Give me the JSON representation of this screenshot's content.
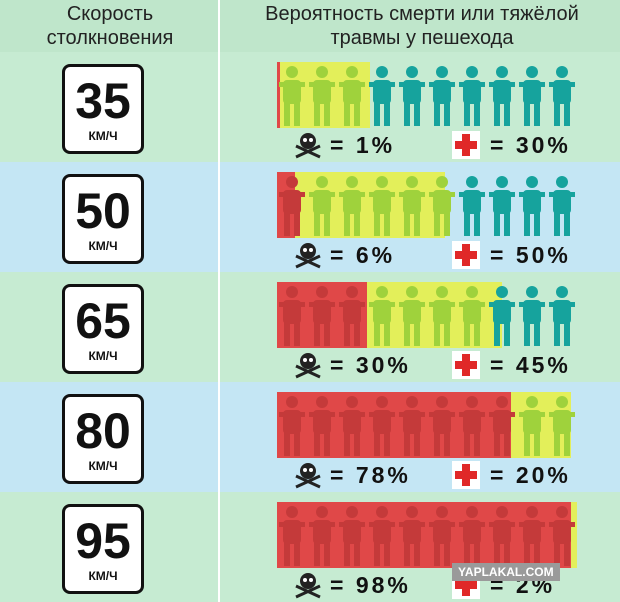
{
  "header": {
    "speed": "Скорость столкновения",
    "risk": "Вероятность смерти или тяжёлой травмы у пешехода"
  },
  "unit": "КМ/Ч",
  "rows": [
    {
      "speed": "35",
      "death": 1,
      "death_label": "= 1%",
      "injury": 30,
      "injury_label": "= 30%"
    },
    {
      "speed": "50",
      "death": 6,
      "death_label": "= 6%",
      "injury": 50,
      "injury_label": "= 50%"
    },
    {
      "speed": "65",
      "death": 30,
      "death_label": "= 30%",
      "injury": 45,
      "injury_label": "= 45%"
    },
    {
      "speed": "80",
      "death": 78,
      "death_label": "= 78%",
      "injury": 20,
      "injury_label": "= 20%"
    },
    {
      "speed": "95",
      "death": 98,
      "death_label": "= 98%",
      "injury": 2,
      "injury_label": "= 2%"
    }
  ],
  "watermark": "YAPLAKAL.COM"
}
